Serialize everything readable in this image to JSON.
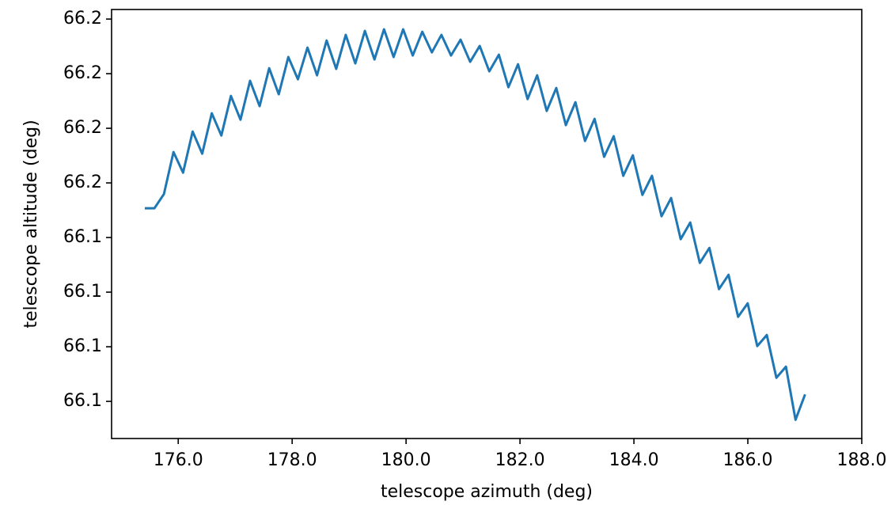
{
  "chart_data": {
    "type": "line",
    "x_label": "telescope azimuth (deg)",
    "y_label": "telescope altitude (deg)",
    "color": "#1f77b4",
    "x": [
      175.413,
      175.581,
      175.749,
      175.917,
      176.085,
      176.253,
      176.421,
      176.589,
      176.757,
      176.925,
      177.093,
      177.261,
      177.429,
      177.597,
      177.765,
      177.933,
      178.101,
      178.269,
      178.437,
      178.605,
      178.773,
      178.941,
      179.109,
      179.277,
      179.445,
      179.613,
      179.781,
      179.949,
      180.117,
      180.285,
      180.453,
      180.621,
      180.789,
      180.957,
      181.125,
      181.293,
      181.461,
      181.629,
      181.797,
      181.965,
      182.133,
      182.301,
      182.469,
      182.637,
      182.805,
      182.973,
      183.141,
      183.309,
      183.477,
      183.645,
      183.813,
      183.981,
      184.149,
      184.317,
      184.485,
      184.653,
      184.821,
      184.989,
      185.157,
      185.325,
      185.493,
      185.661,
      185.829,
      185.997,
      186.165,
      186.333,
      186.501,
      186.669,
      186.837,
      187.005
    ],
    "values": [
      66.15014,
      66.15014,
      66.15118,
      66.15426,
      66.15275,
      66.15576,
      66.15414,
      66.1571,
      66.15547,
      66.15837,
      66.15663,
      66.15948,
      66.15762,
      66.1604,
      66.15849,
      66.16122,
      66.15959,
      66.16191,
      66.15988,
      66.16243,
      66.16035,
      66.16284,
      66.16075,
      66.16313,
      66.16104,
      66.16325,
      66.16122,
      66.16325,
      66.16133,
      66.16307,
      66.16156,
      66.16284,
      66.16133,
      66.16249,
      66.16087,
      66.16203,
      66.16017,
      66.16139,
      66.15901,
      66.16069,
      66.15814,
      66.15988,
      66.15727,
      66.15895,
      66.15623,
      66.15791,
      66.15507,
      66.15669,
      66.15391,
      66.15542,
      66.15252,
      66.15402,
      66.15112,
      66.15252,
      66.14956,
      66.15089,
      66.14788,
      66.1491,
      66.14614,
      66.14724,
      66.14422,
      66.14527,
      66.14219,
      66.14318,
      66.14005,
      66.14086,
      66.13773,
      66.13854,
      66.13465,
      66.13651
    ],
    "xlim": [
      174.83,
      188.0
    ],
    "ylim": [
      66.13328,
      66.1647
    ],
    "xticks": [
      {
        "value": 176,
        "label": "176.0"
      },
      {
        "value": 178,
        "label": "178.0"
      },
      {
        "value": 180,
        "label": "180.0"
      },
      {
        "value": 182,
        "label": "182.0"
      },
      {
        "value": 184,
        "label": "184.0"
      },
      {
        "value": 186,
        "label": "186.0"
      },
      {
        "value": 188,
        "label": "188.0"
      }
    ],
    "yticks": [
      {
        "value": 66.164,
        "label": "66.2"
      },
      {
        "value": 66.16,
        "label": "66.2"
      },
      {
        "value": 66.156,
        "label": "66.2"
      },
      {
        "value": 66.152,
        "label": "66.2"
      },
      {
        "value": 66.148,
        "label": "66.1"
      },
      {
        "value": 66.144,
        "label": "66.1"
      },
      {
        "value": 66.14,
        "label": "66.1"
      },
      {
        "value": 66.136,
        "label": "66.1"
      }
    ],
    "grid": false
  }
}
